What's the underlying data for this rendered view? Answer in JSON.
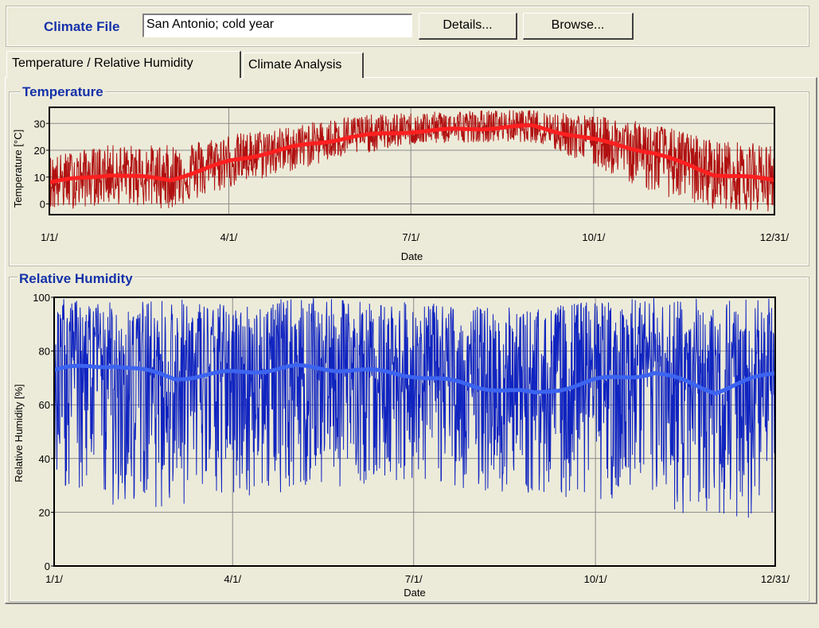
{
  "header": {
    "climate_label": "Climate File",
    "climate_value": "San Antonio; cold year",
    "details_label": "Details...",
    "browse_label": "Browse..."
  },
  "tabs": [
    {
      "label": "Temperature / Relative Humidity",
      "active": true
    },
    {
      "label": "Climate Analysis",
      "active": false
    }
  ],
  "colors": {
    "title_blue": "#1532a8",
    "temp_raw": "#b01010",
    "temp_smooth": "#ff2020",
    "rh_raw": "#1024c0",
    "rh_smooth": "#3c64f0"
  },
  "chart_data": [
    {
      "type": "line",
      "title": "Temperature",
      "xlabel": "Date",
      "ylabel": "Temperature [°C]",
      "x_ticks": [
        "1/1/",
        "4/1/",
        "7/1/",
        "10/1/",
        "12/31/"
      ],
      "y_ticks": [
        0,
        10,
        20,
        30
      ],
      "ylim": [
        -4,
        36
      ],
      "grid": true,
      "series": [
        {
          "values_smoothed_monthly": [
            8,
            11,
            9,
            16,
            21,
            25,
            27,
            28,
            29,
            24,
            19,
            11,
            9
          ]
        },
        {
          "envelope_monthly_min": [
            -3,
            0,
            -2,
            6,
            12,
            18,
            22,
            23,
            23,
            14,
            4,
            -2,
            -3
          ],
          "envelope_monthly_max": [
            18,
            22,
            22,
            26,
            29,
            33,
            34,
            35,
            35,
            33,
            30,
            24,
            22
          ]
        }
      ]
    },
    {
      "type": "line",
      "title": "Relative Humidity",
      "xlabel": "Date",
      "ylabel": "Relative Humidity [%]",
      "x_ticks": [
        "1/1/",
        "4/1/",
        "7/1/",
        "10/1/",
        "12/31/"
      ],
      "y_ticks": [
        0,
        20,
        40,
        60,
        80,
        100
      ],
      "ylim": [
        0,
        100
      ],
      "grid": true,
      "series": [
        {
          "values_smoothed_monthly": [
            73,
            75,
            70,
            72,
            74,
            73,
            71,
            67,
            64,
            69,
            72,
            65,
            72
          ]
        },
        {
          "envelope_monthly_min": [
            30,
            22,
            22,
            25,
            28,
            30,
            32,
            28,
            26,
            25,
            20,
            18,
            17
          ],
          "envelope_monthly_max": [
            100,
            98,
            100,
            97,
            100,
            99,
            98,
            97,
            96,
            99,
            100,
            100,
            100
          ]
        }
      ]
    }
  ]
}
